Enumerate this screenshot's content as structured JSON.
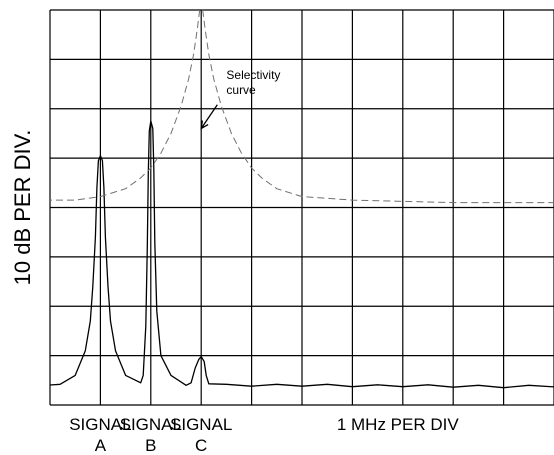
{
  "chart_data": {
    "type": "line",
    "title": "",
    "ylabel": "10 dB PER DIV.",
    "xlabel": "1 MHz PER DIV",
    "grid": true,
    "legend": "none",
    "xlim": [
      0,
      10
    ],
    "ylim": [
      0,
      8
    ],
    "x_labels": [
      {
        "line1": "SIGNAL",
        "line2": "A",
        "x": 1.0
      },
      {
        "line1": "SIGNAL",
        "line2": "B",
        "x": 2.0
      },
      {
        "line1": "SIGNAL",
        "line2": "C",
        "x": 3.0
      }
    ],
    "annotation": {
      "line1": "Selectivity",
      "line2": "curve",
      "x": 3.2,
      "y": 5.5
    },
    "series": [
      {
        "style": "solid",
        "color": "#000000",
        "points": [
          [
            -0.1,
            0.4
          ],
          [
            0.2,
            0.42
          ],
          [
            0.5,
            0.6
          ],
          [
            0.7,
            1.1
          ],
          [
            0.8,
            1.7
          ],
          [
            0.85,
            2.4
          ],
          [
            0.9,
            3.4
          ],
          [
            0.93,
            4.4
          ],
          [
            0.96,
            4.95
          ],
          [
            1.0,
            5.05
          ],
          [
            1.04,
            4.95
          ],
          [
            1.07,
            4.4
          ],
          [
            1.1,
            3.4
          ],
          [
            1.15,
            2.4
          ],
          [
            1.2,
            1.7
          ],
          [
            1.3,
            1.1
          ],
          [
            1.5,
            0.6
          ],
          [
            1.8,
            0.45
          ],
          [
            1.85,
            0.6
          ],
          [
            1.9,
            1.6
          ],
          [
            1.93,
            3.2
          ],
          [
            1.95,
            4.7
          ],
          [
            1.97,
            5.55
          ],
          [
            2.0,
            5.75
          ],
          [
            2.04,
            5.6
          ],
          [
            2.06,
            4.8
          ],
          [
            2.08,
            3.3
          ],
          [
            2.12,
            1.9
          ],
          [
            2.2,
            1.0
          ],
          [
            2.4,
            0.6
          ],
          [
            2.7,
            0.4
          ],
          [
            2.8,
            0.45
          ],
          [
            2.88,
            0.75
          ],
          [
            2.95,
            0.92
          ],
          [
            3.0,
            0.98
          ],
          [
            3.06,
            0.88
          ],
          [
            3.1,
            0.6
          ],
          [
            3.15,
            0.43
          ],
          [
            3.5,
            0.42
          ],
          [
            4.0,
            0.38
          ],
          [
            4.5,
            0.42
          ],
          [
            5.0,
            0.38
          ],
          [
            5.5,
            0.42
          ],
          [
            6.0,
            0.37
          ],
          [
            6.5,
            0.41
          ],
          [
            7.0,
            0.37
          ],
          [
            7.5,
            0.41
          ],
          [
            8.0,
            0.36
          ],
          [
            8.5,
            0.4
          ],
          [
            9.0,
            0.35
          ],
          [
            9.5,
            0.4
          ],
          [
            10.1,
            0.36
          ]
        ]
      },
      {
        "style": "dashed",
        "color": "#707070",
        "points": [
          [
            -0.1,
            4.15
          ],
          [
            0.5,
            4.15
          ],
          [
            1.0,
            4.22
          ],
          [
            1.5,
            4.38
          ],
          [
            1.8,
            4.6
          ],
          [
            2.0,
            4.8
          ],
          [
            2.2,
            5.1
          ],
          [
            2.4,
            5.5
          ],
          [
            2.6,
            6.05
          ],
          [
            2.75,
            6.6
          ],
          [
            2.85,
            7.1
          ],
          [
            2.92,
            7.6
          ],
          [
            2.97,
            8.0
          ],
          [
            3.0,
            8.15
          ],
          [
            3.03,
            8.0
          ],
          [
            3.08,
            7.6
          ],
          [
            3.15,
            7.1
          ],
          [
            3.25,
            6.6
          ],
          [
            3.4,
            6.05
          ],
          [
            3.6,
            5.5
          ],
          [
            3.8,
            5.1
          ],
          [
            4.0,
            4.8
          ],
          [
            4.2,
            4.6
          ],
          [
            4.5,
            4.38
          ],
          [
            5.0,
            4.22
          ],
          [
            6.0,
            4.15
          ],
          [
            8.0,
            4.1
          ],
          [
            10.1,
            4.1
          ]
        ]
      }
    ]
  }
}
